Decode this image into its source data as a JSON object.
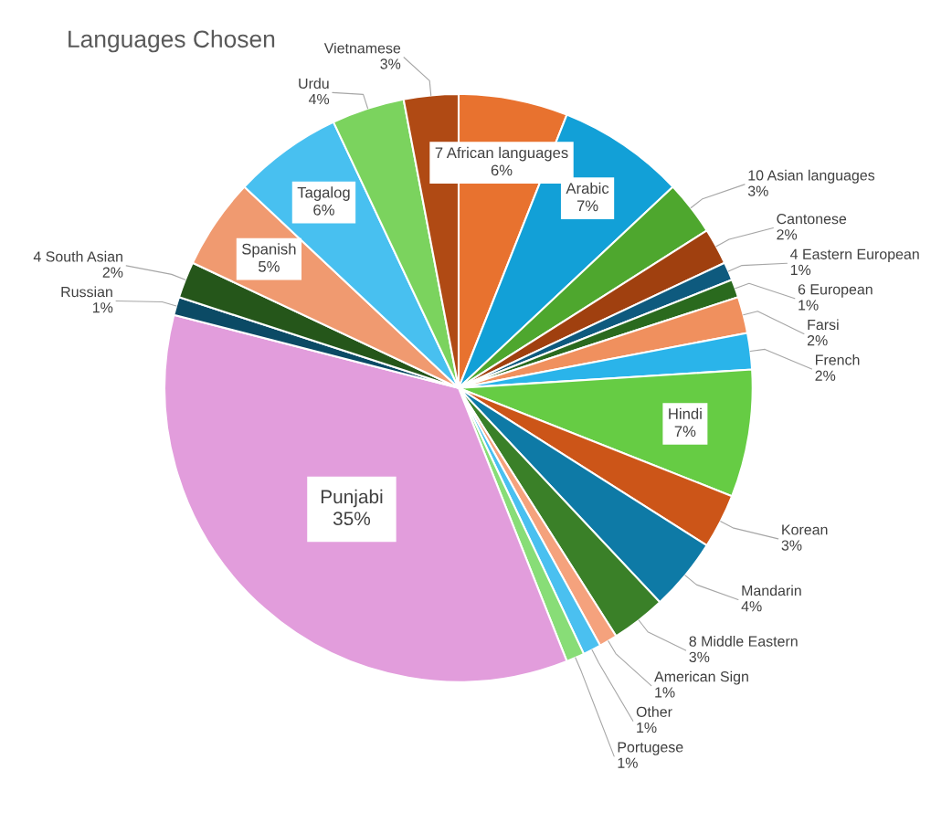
{
  "chart_data": {
    "type": "pie",
    "title": "Languages Chosen",
    "categories": [
      "7 African languages",
      "Arabic",
      "10 Asian languages",
      "Cantonese",
      "4 Eastern European",
      "6 European",
      "Farsi",
      "French",
      "Hindi",
      "Korean",
      "Mandarin",
      "8 Middle Eastern",
      "American Sign",
      "Other",
      "Portugese",
      "Punjabi",
      "Russian",
      "4 South Asian",
      "Spanish",
      "Tagalog",
      "Urdu",
      "Vietnamese"
    ],
    "values": [
      6,
      7,
      3,
      2,
      1,
      1,
      2,
      2,
      7,
      3,
      4,
      3,
      1,
      1,
      1,
      35,
      1,
      2,
      5,
      6,
      4,
      3
    ],
    "value_labels": [
      "6%",
      "7%",
      "3%",
      "2%",
      "1%",
      "1%",
      "2%",
      "2%",
      "7%",
      "3%",
      "4%",
      "3%",
      "1%",
      "1%",
      "1%",
      "35%",
      "1%",
      "2%",
      "5%",
      "6%",
      "4%",
      "3%"
    ],
    "colors": [
      "#e8722f",
      "#12a0d7",
      "#4ea72e",
      "#a0400f",
      "#0e5a7e",
      "#2a6a1e",
      "#f0905e",
      "#2ab4ea",
      "#66cc44",
      "#cc5518",
      "#0e7aa6",
      "#3a8028",
      "#f5a27d",
      "#4ac0f0",
      "#88dd77",
      "#e29ddc",
      "#0b4a65",
      "#25561a",
      "#f09a70",
      "#48c0f0",
      "#7bd35e",
      "#b04a14"
    ],
    "data_labels": true,
    "legend": false
  }
}
